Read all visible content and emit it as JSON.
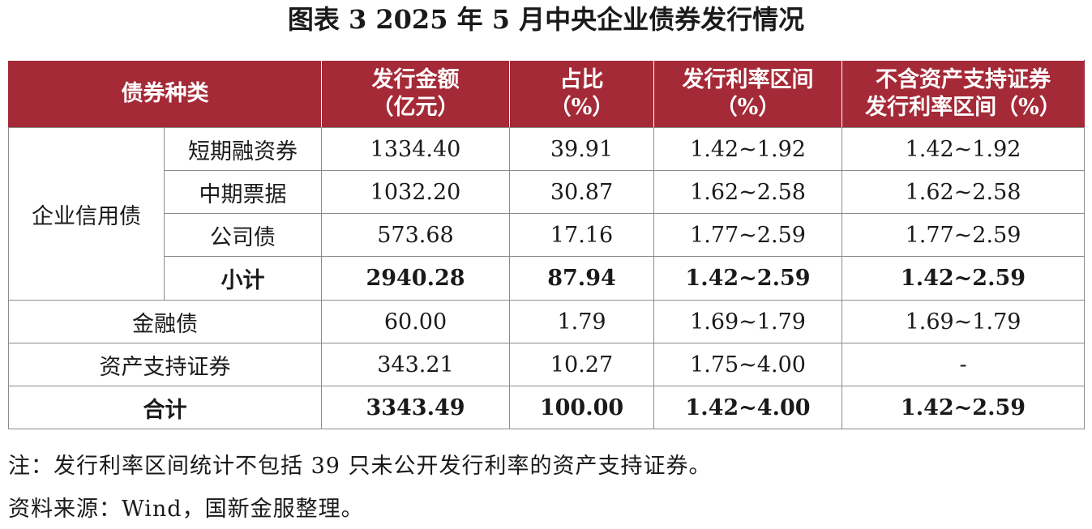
{
  "title": "图表 3  2025 年 5 月中央企业债券发行情况",
  "table": {
    "headers": {
      "category": "债券种类",
      "amount_line1": "发行金额",
      "amount_line2": "（亿元）",
      "share_line1": "占比",
      "share_line2": "（%）",
      "rate_line1": "发行利率区间",
      "rate_line2": "（%）",
      "rate_ex_line1": "不含资产支持证券",
      "rate_ex_line2": "发行利率区间（%）"
    },
    "group_label": "企业信用债",
    "rows": [
      {
        "label": "短期融资券",
        "amount": "1334.40",
        "share": "39.91",
        "rate": "1.42~1.92",
        "rate_ex": "1.42~1.92"
      },
      {
        "label": "中期票据",
        "amount": "1032.20",
        "share": "30.87",
        "rate": "1.62~2.58",
        "rate_ex": "1.62~2.58"
      },
      {
        "label": "公司债",
        "amount": "573.68",
        "share": "17.16",
        "rate": "1.77~2.59",
        "rate_ex": "1.77~2.59"
      },
      {
        "label": "小计",
        "amount": "2940.28",
        "share": "87.94",
        "rate": "1.42~2.59",
        "rate_ex": "1.42~2.59"
      },
      {
        "label": "金融债",
        "amount": "60.00",
        "share": "1.79",
        "rate": "1.69~1.79",
        "rate_ex": "1.69~1.79"
      },
      {
        "label": "资产支持证券",
        "amount": "343.21",
        "share": "10.27",
        "rate": "1.75~4.00",
        "rate_ex": "-"
      },
      {
        "label": "合计",
        "amount": "3343.49",
        "share": "100.00",
        "rate": "1.42~4.00",
        "rate_ex": "1.42~2.59"
      }
    ]
  },
  "notes": {
    "note": "注：发行利率区间统计不包括 39 只未公开发行利率的资产支持证券。",
    "source": "资料来源：Wind，国新金服整理。"
  },
  "colors": {
    "header_bg": "#a52a37",
    "header_text": "#ffffff",
    "grid": "#8c8c8c"
  }
}
